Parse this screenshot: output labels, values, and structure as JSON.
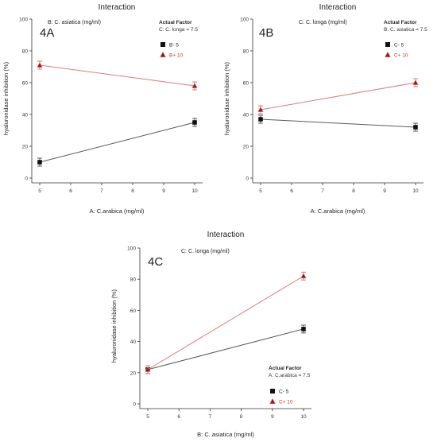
{
  "chart_data": [
    {
      "type": "line",
      "panel_label": "4A",
      "title": "Interaction",
      "subtitle": "B: C. asiatica (mg/ml)",
      "xlabel": "A: C.arabica  (mg/ml)",
      "ylabel": "hyaluronidase inhibition  (%)",
      "xlim": [
        5,
        10
      ],
      "ylim": [
        0,
        100
      ],
      "x_ticks": [
        "5",
        "6",
        "7",
        "8",
        "9",
        "10"
      ],
      "y_ticks": [
        "0",
        "20",
        "40",
        "60",
        "80",
        "100"
      ],
      "x": [
        5,
        10
      ],
      "actual_factor": {
        "heading": "Actual Factor",
        "text": "C: C. longa = 7.5"
      },
      "legend_position": "top-right",
      "series": [
        {
          "name": "B- 5",
          "marker": "square",
          "color": "#5a5a5a",
          "marker_color": "#111111",
          "values": [
            10,
            35
          ],
          "errors": [
            2.5,
            2.5
          ]
        },
        {
          "name": "B+ 10",
          "marker": "triangle",
          "color": "#e07a7a",
          "marker_color": "#8b1a1a",
          "values": [
            71,
            58
          ],
          "errors": [
            2.5,
            2.5
          ]
        }
      ]
    },
    {
      "type": "line",
      "panel_label": "4B",
      "title": "Interaction",
      "subtitle": "C: C. longa (mg/ml)",
      "xlabel": "A: C.arabica  (mg/ml)",
      "ylabel": "hyaluronidase inhibition  (%)",
      "xlim": [
        5,
        10
      ],
      "ylim": [
        0,
        100
      ],
      "x_ticks": [
        "5",
        "6",
        "7",
        "8",
        "9",
        "10"
      ],
      "y_ticks": [
        "0",
        "20",
        "40",
        "60",
        "80",
        "100"
      ],
      "x": [
        5,
        10
      ],
      "actual_factor": {
        "heading": "Actual Factor",
        "text": "B: C. asiatica = 7.5"
      },
      "legend_position": "top-right",
      "series": [
        {
          "name": "C- 5",
          "marker": "square",
          "color": "#5a5a5a",
          "marker_color": "#111111",
          "values": [
            37,
            32
          ],
          "errors": [
            2.5,
            2.5
          ]
        },
        {
          "name": "C+ 10",
          "marker": "triangle",
          "color": "#e07a7a",
          "marker_color": "#8b1a1a",
          "values": [
            43,
            60
          ],
          "errors": [
            2.5,
            2.5
          ]
        }
      ]
    },
    {
      "type": "line",
      "panel_label": "4C",
      "title": "Interaction",
      "subtitle": "C: C. longa (mg/ml)",
      "xlabel": "B: C. asiatica (mg/ml)",
      "ylabel": "hyaluronidase inhibition  (%)",
      "xlim": [
        5,
        10
      ],
      "ylim": [
        0,
        100
      ],
      "x_ticks": [
        "5",
        "6",
        "7",
        "8",
        "9",
        "10"
      ],
      "y_ticks": [
        "0",
        "20",
        "40",
        "60",
        "80",
        "100"
      ],
      "x": [
        5,
        10
      ],
      "actual_factor": {
        "heading": "Actual Factor",
        "text": "A: C.arabica = 7.5"
      },
      "legend_position": "bottom-right",
      "series": [
        {
          "name": "C- 5",
          "marker": "square",
          "color": "#5a5a5a",
          "marker_color": "#111111",
          "values": [
            22,
            48
          ],
          "errors": [
            2.5,
            2.5
          ]
        },
        {
          "name": "C+ 10",
          "marker": "triangle",
          "color": "#e07a7a",
          "marker_color": "#8b1a1a",
          "values": [
            22,
            82
          ],
          "errors": [
            2.5,
            2.5
          ]
        }
      ]
    }
  ]
}
